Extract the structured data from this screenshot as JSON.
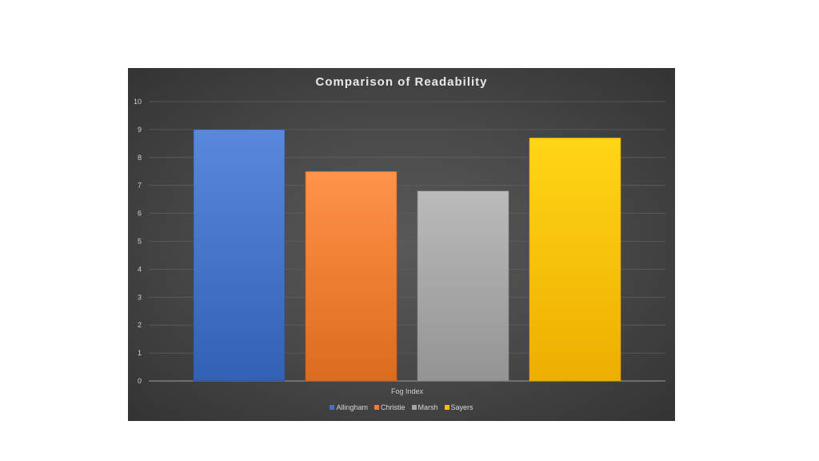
{
  "chart_data": {
    "type": "bar",
    "title": "Comparison of Readability",
    "xlabel": "Fog Index",
    "ylabel": "",
    "ylim": [
      0,
      10
    ],
    "yticks": [
      0,
      1,
      2,
      3,
      4,
      5,
      6,
      7,
      8,
      9,
      10
    ],
    "grid": true,
    "legend_position": "bottom",
    "series": [
      {
        "name": "Allingham",
        "value": 9.0,
        "color": "#4472C4"
      },
      {
        "name": "Christie",
        "value": 7.5,
        "color": "#ED7D31"
      },
      {
        "name": "Marsh",
        "value": 6.8,
        "color": "#A5A5A5"
      },
      {
        "name": "Sayers",
        "value": 8.7,
        "color": "#FFC000"
      }
    ]
  }
}
